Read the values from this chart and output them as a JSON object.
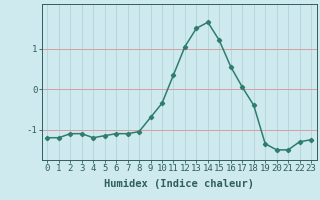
{
  "x": [
    0,
    1,
    2,
    3,
    4,
    5,
    6,
    7,
    8,
    9,
    10,
    11,
    12,
    13,
    14,
    15,
    16,
    17,
    18,
    19,
    20,
    21,
    22,
    23
  ],
  "y": [
    -1.2,
    -1.2,
    -1.1,
    -1.1,
    -1.2,
    -1.15,
    -1.1,
    -1.1,
    -1.05,
    -0.7,
    -0.35,
    0.35,
    1.05,
    1.5,
    1.65,
    1.2,
    0.55,
    0.05,
    -0.4,
    -1.35,
    -1.5,
    -1.5,
    -1.3,
    -1.25
  ],
  "line_color": "#2e7d6e",
  "marker": "D",
  "marker_size": 2.2,
  "background_color": "#ceeaee",
  "grid_color": "#aed0d8",
  "hline_color": "#d4a0a0",
  "axis_color": "#2e5f5a",
  "xlabel": "Humidex (Indice chaleur)",
  "ylabel": "",
  "title": "",
  "xlim": [
    -0.5,
    23.5
  ],
  "ylim": [
    -1.75,
    2.1
  ],
  "yticks": [
    -1,
    0,
    1
  ],
  "xticks": [
    0,
    1,
    2,
    3,
    4,
    5,
    6,
    7,
    8,
    9,
    10,
    11,
    12,
    13,
    14,
    15,
    16,
    17,
    18,
    19,
    20,
    21,
    22,
    23
  ],
  "xlabel_fontsize": 7.5,
  "tick_fontsize": 6.5,
  "line_width": 1.1
}
